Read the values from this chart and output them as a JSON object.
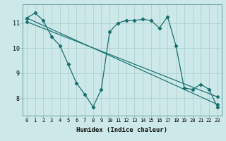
{
  "x": [
    0,
    1,
    2,
    3,
    4,
    5,
    6,
    7,
    8,
    9,
    10,
    11,
    12,
    13,
    14,
    15,
    16,
    17,
    18,
    19,
    20,
    21,
    22,
    23
  ],
  "y_main": [
    11.2,
    11.4,
    11.1,
    10.45,
    10.1,
    9.35,
    8.6,
    8.15,
    7.65,
    8.35,
    10.65,
    11.0,
    11.1,
    11.1,
    11.15,
    11.1,
    10.8,
    11.25,
    10.1,
    8.4,
    8.35,
    8.55,
    8.35,
    7.65
  ],
  "line1_x": [
    0,
    23
  ],
  "line1_y": [
    11.2,
    7.75
  ],
  "line2_x": [
    0,
    23
  ],
  "line2_y": [
    11.05,
    8.05
  ],
  "bg_color": "#cce8e8",
  "grid_color": "#aacccc",
  "line_color": "#1a7070",
  "xlabel": "Humidex (Indice chaleur)",
  "ylim": [
    7.3,
    11.75
  ],
  "xlim": [
    -0.5,
    23.5
  ],
  "yticks": [
    8,
    9,
    10,
    11
  ],
  "xticks": [
    0,
    1,
    2,
    3,
    4,
    5,
    6,
    7,
    8,
    9,
    10,
    11,
    12,
    13,
    14,
    15,
    16,
    17,
    18,
    19,
    20,
    21,
    22,
    23
  ]
}
